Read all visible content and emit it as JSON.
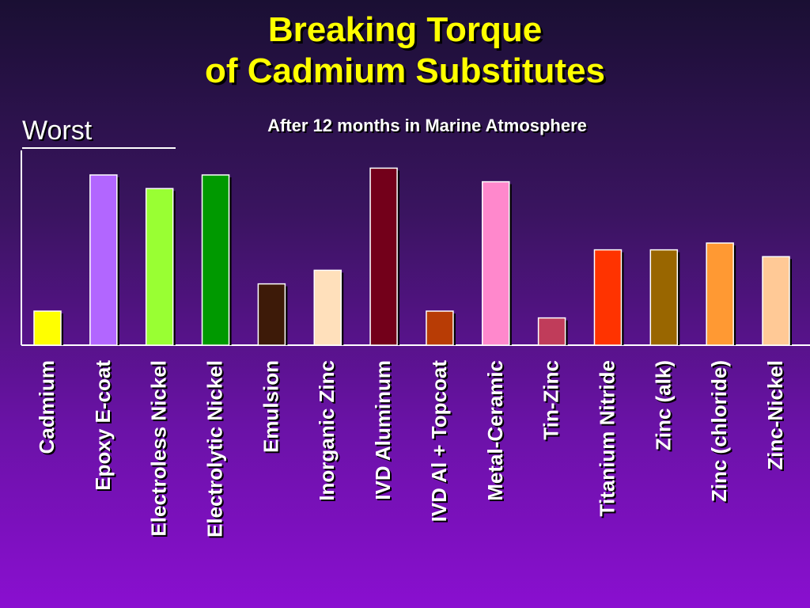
{
  "title_line1": "Breaking Torque",
  "title_line2": "of Cadmium Substitutes",
  "subtitle": "After 12 months in Marine Atmosphere",
  "worst_label": "Worst",
  "chart_data": {
    "type": "bar",
    "title": "Breaking Torque of Cadmium Substitutes",
    "subtitle": "After 12 months in Marine Atmosphere",
    "xlabel": "",
    "ylabel": "",
    "grid": false,
    "ylim": [
      0,
      100
    ],
    "categories": [
      "Cadmium",
      "Epoxy E-coat",
      "Electroless Nickel",
      "Electrolytic Nickel",
      "Emulsion",
      "Inorganic Zinc",
      "IVD Aluminum",
      "IVD Al + Topcoat",
      "Metal-Ceramic",
      "Tin-Zinc",
      "Titanium Nitride",
      "Zinc (alk)",
      "Zinc (chloride)",
      "Zinc-Nickel"
    ],
    "values": [
      20,
      100,
      92,
      100,
      36,
      44,
      104,
      20,
      96,
      16,
      56,
      56,
      60,
      52
    ],
    "colors": [
      "#ffff00",
      "#b266ff",
      "#99ff33",
      "#009900",
      "#3d1a08",
      "#ffe0bb",
      "#73001a",
      "#b83c05",
      "#ff88cc",
      "#c03c5a",
      "#ff3300",
      "#996600",
      "#ff9933",
      "#ffc996"
    ]
  }
}
